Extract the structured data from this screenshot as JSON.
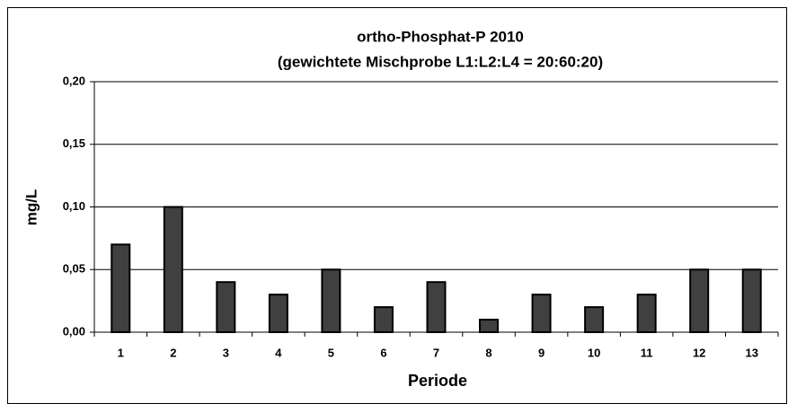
{
  "chart_data": {
    "type": "bar",
    "title": "ortho-Phosphat-P 2010",
    "subtitle": "(gewichtete Mischprobe L1:L2:L4 = 20:60:20)",
    "x_label": "Periode",
    "y_label": "mg/L",
    "categories": [
      "1",
      "2",
      "3",
      "4",
      "5",
      "6",
      "7",
      "8",
      "9",
      "10",
      "11",
      "12",
      "13"
    ],
    "values": [
      0.07,
      0.1,
      0.04,
      0.03,
      0.05,
      0.02,
      0.04,
      0.01,
      0.03,
      0.02,
      0.03,
      0.05,
      0.05
    ],
    "color": "#404040",
    "ylim": [
      0,
      0.2
    ],
    "yticks": [
      {
        "value": 0,
        "label": "0,00"
      },
      {
        "value": 0.05,
        "label": "0,05"
      },
      {
        "value": 0.1,
        "label": "0,10"
      },
      {
        "value": 0.15,
        "label": "0,15"
      },
      {
        "value": 0.2,
        "label": "0,20"
      }
    ],
    "grid": true
  }
}
